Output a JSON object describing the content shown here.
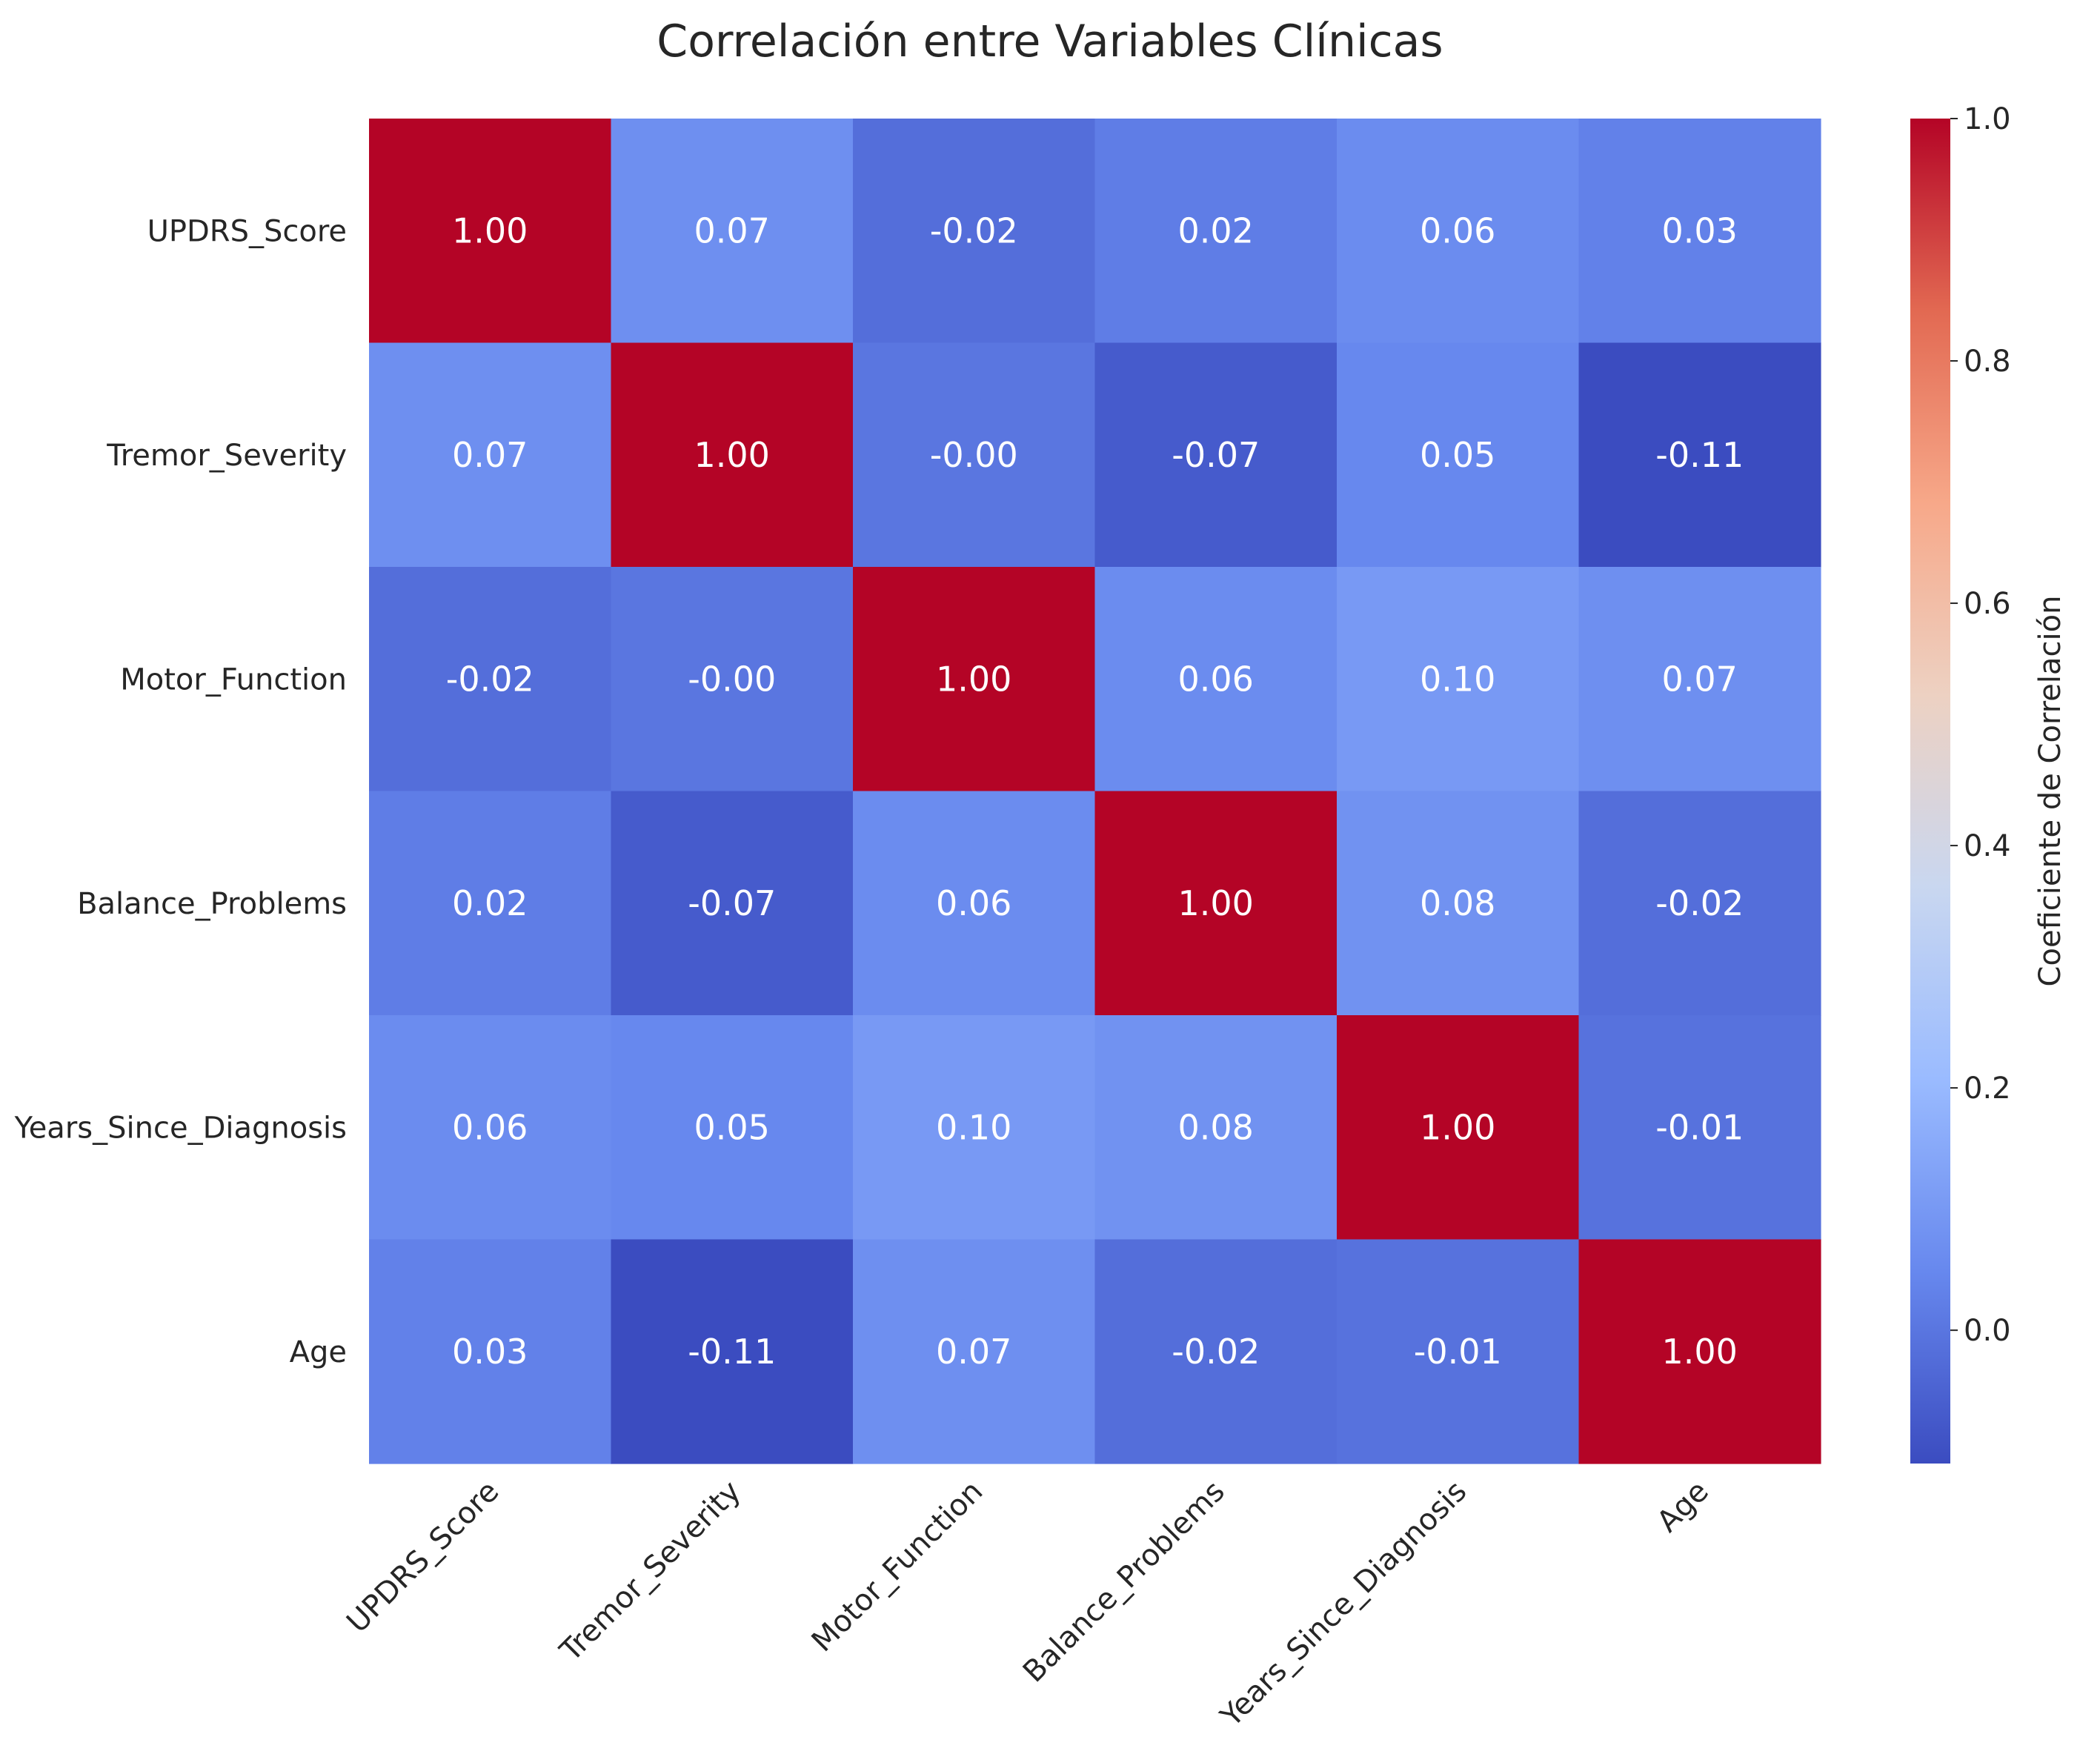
{
  "chart_data": {
    "type": "heatmap",
    "title": "Correlación entre Variables Clínicas",
    "variables": [
      "UPDRS_Score",
      "Tremor_Severity",
      "Motor_Function",
      "Balance_Problems",
      "Years_Since_Diagnosis",
      "Age"
    ],
    "values": [
      [
        1.0,
        0.07,
        -0.02,
        0.02,
        0.06,
        0.03
      ],
      [
        0.07,
        1.0,
        -0.0,
        -0.07,
        0.05,
        -0.11
      ],
      [
        -0.02,
        -0.0,
        1.0,
        0.06,
        0.1,
        0.07
      ],
      [
        0.02,
        -0.07,
        0.06,
        1.0,
        0.08,
        -0.02
      ],
      [
        0.06,
        0.05,
        0.1,
        0.08,
        1.0,
        -0.01
      ],
      [
        0.03,
        -0.11,
        0.07,
        -0.02,
        -0.01,
        1.0
      ]
    ],
    "value_labels": [
      [
        "1.00",
        "0.07",
        "-0.02",
        "0.02",
        "0.06",
        "0.03"
      ],
      [
        "0.07",
        "1.00",
        "-0.00",
        "-0.07",
        "0.05",
        "-0.11"
      ],
      [
        "-0.02",
        "-0.00",
        "1.00",
        "0.06",
        "0.10",
        "0.07"
      ],
      [
        "0.02",
        "-0.07",
        "0.06",
        "1.00",
        "0.08",
        "-0.02"
      ],
      [
        "0.06",
        "0.05",
        "0.10",
        "0.08",
        "1.00",
        "-0.01"
      ],
      [
        "0.03",
        "-0.11",
        "0.07",
        "-0.02",
        "-0.01",
        "1.00"
      ]
    ],
    "colormap": "coolwarm",
    "colormap_stops": [
      "#3b4cc0",
      "#6788ee",
      "#9abbff",
      "#c9d7f0",
      "#edd1c2",
      "#f7a889",
      "#e26952",
      "#b40426"
    ],
    "color_range": [
      -0.11,
      1.0
    ],
    "colorbar": {
      "label": "Coeficiente de Correlación",
      "ticks": [
        0.0,
        0.2,
        0.4,
        0.6,
        0.8,
        1.0
      ],
      "tick_labels": [
        "0.0",
        "0.2",
        "0.4",
        "0.6",
        "0.8",
        "1.0"
      ]
    },
    "grid": false
  }
}
